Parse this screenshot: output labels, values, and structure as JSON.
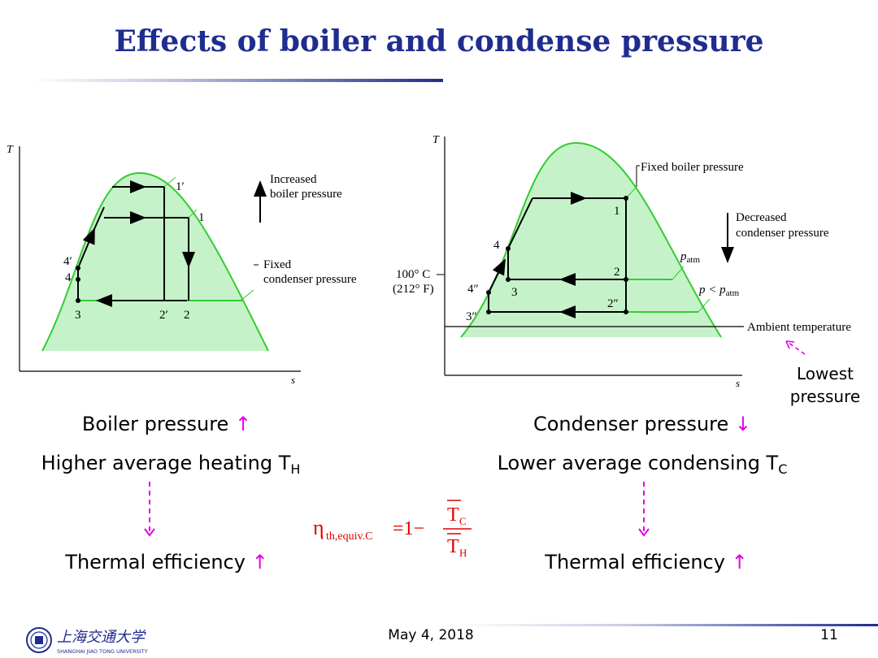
{
  "title": "Effects of boiler and condense pressure",
  "left_diagram": {
    "axis_t": "T",
    "axis_s": "s",
    "states": {
      "s1p": "1′",
      "s1": "1",
      "s2p": "2′",
      "s2": "2",
      "s3": "3",
      "s4p": "4′",
      "s4": "4"
    },
    "increased_line1": "Increased",
    "increased_line2": "boiler pressure",
    "fixed_line1": "Fixed",
    "fixed_line2": "condenser pressure"
  },
  "right_diagram": {
    "axis_t": "T",
    "axis_s": "s",
    "fixed_boiler": "Fixed boiler pressure",
    "decreased_line1": "Decreased",
    "decreased_line2": "condenser pressure",
    "p_atm": "p",
    "p_atm_sub": "atm",
    "p_lt": "p < p",
    "p_lt_sub": "atm",
    "temp_c": "100° C",
    "temp_f": "(212° F)",
    "ambient": "Ambient temperature",
    "lowest_line1": "Lowest",
    "lowest_line2": "pressure",
    "states": {
      "s1": "1",
      "s2": "2",
      "s2pp": "2″",
      "s3": "3",
      "s3pp": "3″",
      "s4": "4",
      "s4pp": "4″"
    }
  },
  "captions": {
    "boiler_pressure": "Boiler pressure",
    "higher_avg": "Higher average heating T",
    "higher_sub": "H",
    "thermal_left": "Thermal efficiency",
    "condenser_pressure": "Condenser pressure",
    "lower_avg": "Lower average condensing T",
    "lower_sub": "C",
    "thermal_right": "Thermal efficiency",
    "up_arrow": "↑",
    "down_arrow": "↓"
  },
  "formula": {
    "eta": "η",
    "eta_sub": "th,equiv.C",
    "equals_one_minus": "=1−",
    "numerator": "T",
    "numerator_sub": "C",
    "denominator": "T",
    "denominator_sub": "H"
  },
  "footer": {
    "university_cn": "上海交通大学",
    "university_en": "SHANGHAI JIAO TONG UNIVERSITY",
    "date": "May 4, 2018",
    "page": "11"
  },
  "colors": {
    "title": "#1f2d8f",
    "dome_fill": "#c6f2c9",
    "dome_line": "#33cc33",
    "accent": "#e600e6",
    "formula": "#e10000"
  }
}
